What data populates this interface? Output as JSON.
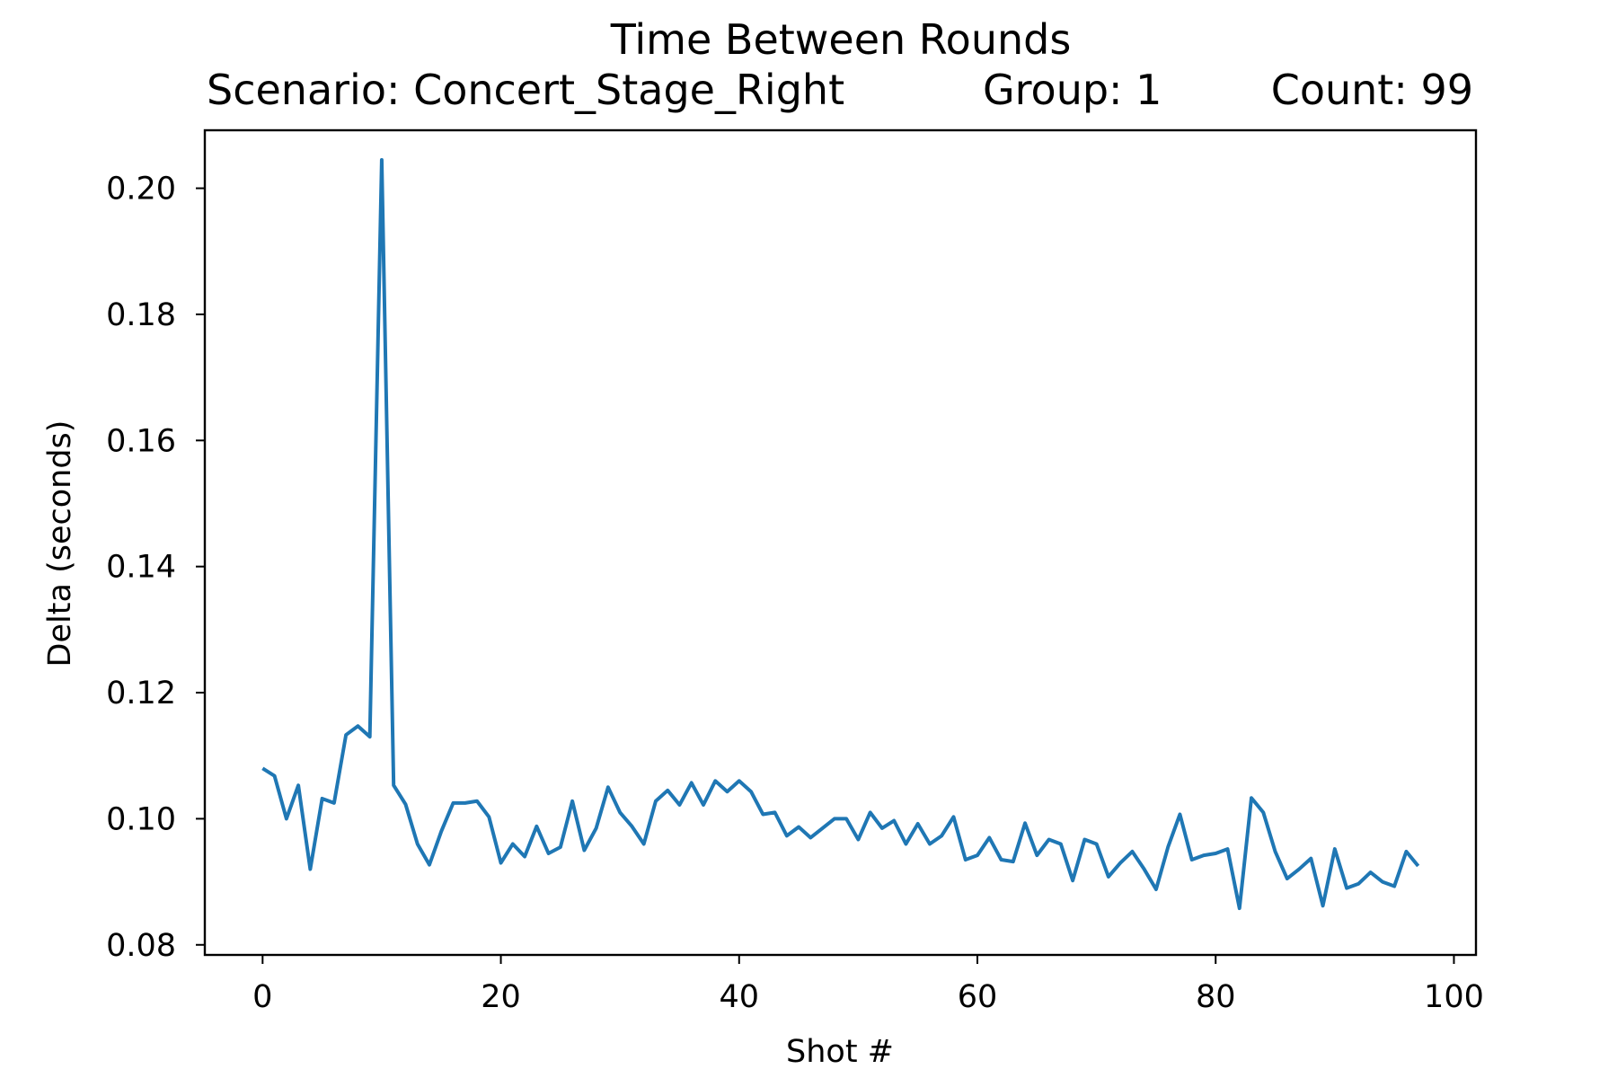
{
  "chart_data": {
    "type": "line",
    "title": "Time Between Rounds",
    "subtitle_parts": [
      "Scenario: Concert_Stage_Right",
      "Group: 1",
      "Count: 99"
    ],
    "xlabel": "Shot #",
    "ylabel": "Delta (seconds)",
    "xlim": [
      -4.85,
      101.85
    ],
    "ylim": [
      0.0784,
      0.2092
    ],
    "xticks": [
      0,
      20,
      40,
      60,
      80,
      100
    ],
    "yticks": [
      0.08,
      0.1,
      0.12,
      0.14,
      0.16,
      0.18,
      0.2
    ],
    "xtick_labels": [
      "0",
      "20",
      "40",
      "60",
      "80",
      "100"
    ],
    "ytick_labels": [
      "0.08",
      "0.10",
      "0.12",
      "0.14",
      "0.16",
      "0.18",
      "0.20"
    ],
    "grid": false,
    "legend": "none",
    "series_color": "#1f77b4",
    "series": [
      {
        "x": [
          0,
          1,
          2,
          3,
          4,
          5,
          6,
          7,
          8,
          9,
          10,
          11,
          12,
          13,
          14,
          15,
          16,
          17,
          18,
          19,
          20,
          21,
          22,
          23,
          24,
          25,
          26,
          27,
          28,
          29,
          30,
          31,
          32,
          33,
          34,
          35,
          36,
          37,
          38,
          39,
          40,
          41,
          42,
          43,
          44,
          45,
          46,
          47,
          48,
          49,
          50,
          51,
          52,
          53,
          54,
          55,
          56,
          57,
          58,
          59,
          60,
          61,
          62,
          63,
          64,
          65,
          66,
          67,
          68,
          69,
          70,
          71,
          72,
          73,
          74,
          75,
          76,
          77,
          78,
          79,
          80,
          81,
          82,
          83,
          84,
          85,
          86,
          87,
          88,
          89,
          90,
          91,
          92,
          93,
          94,
          95,
          96,
          97
        ],
        "values": [
          0.108,
          0.1068,
          0.1,
          0.1053,
          0.092,
          0.1032,
          0.1025,
          0.1133,
          0.1147,
          0.113,
          0.2045,
          0.1053,
          0.1023,
          0.096,
          0.0927,
          0.098,
          0.1025,
          0.1025,
          0.1028,
          0.1003,
          0.093,
          0.096,
          0.094,
          0.0988,
          0.0945,
          0.0955,
          0.1028,
          0.095,
          0.0985,
          0.105,
          0.101,
          0.0988,
          0.096,
          0.1028,
          0.1045,
          0.1022,
          0.1057,
          0.1022,
          0.106,
          0.1043,
          0.106,
          0.1043,
          0.1007,
          0.101,
          0.0973,
          0.0987,
          0.097,
          0.0985,
          0.1,
          0.1,
          0.0967,
          0.101,
          0.0985,
          0.0997,
          0.096,
          0.0992,
          0.096,
          0.0973,
          0.1003,
          0.0935,
          0.0942,
          0.097,
          0.0935,
          0.0932,
          0.0993,
          0.0942,
          0.0967,
          0.096,
          0.0902,
          0.0967,
          0.096,
          0.0908,
          0.093,
          0.0948,
          0.092,
          0.0888,
          0.0955,
          0.1007,
          0.0935,
          0.0942,
          0.0945,
          0.0952,
          0.0858,
          0.1033,
          0.101,
          0.0948,
          0.0905,
          0.092,
          0.0937,
          0.0862,
          0.0952,
          0.089,
          0.0897,
          0.0915,
          0.09,
          0.0893,
          0.0948,
          0.0925
        ]
      }
    ]
  }
}
